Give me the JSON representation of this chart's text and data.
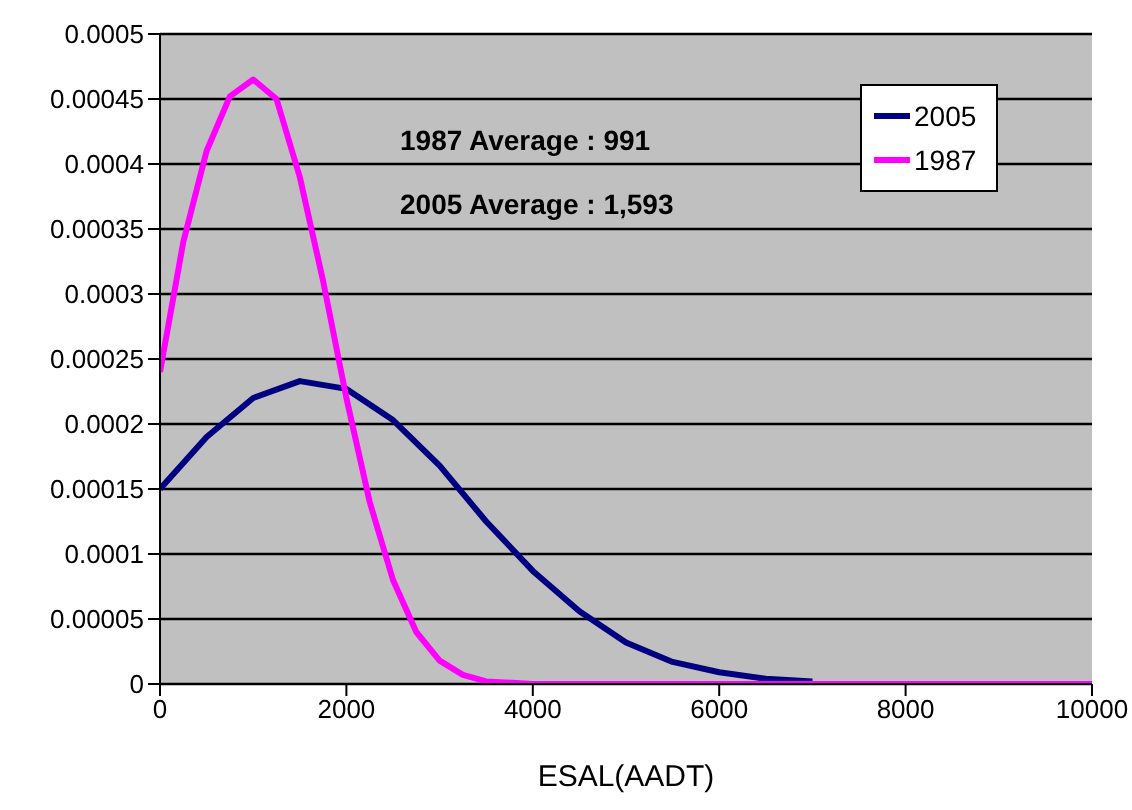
{
  "chart_data": {
    "type": "line",
    "xlabel": "ESAL(AADT)",
    "annotations": [
      "1987 Average : 991",
      "2005 Average : 1,593"
    ],
    "series": [
      {
        "name": "2005",
        "color": "#000080",
        "x": [
          0,
          500,
          1000,
          1500,
          2000,
          2500,
          3000,
          3500,
          4000,
          4500,
          5000,
          5500,
          6000,
          6500,
          7000
        ],
        "values": [
          0.00015,
          0.00019,
          0.00022,
          0.000233,
          0.000227,
          0.000203,
          0.000168,
          0.000125,
          8.7e-05,
          5.6e-05,
          3.2e-05,
          1.7e-05,
          9e-06,
          4e-06,
          2e-06
        ]
      },
      {
        "name": "1987",
        "color": "#ff00ff",
        "x": [
          0,
          250,
          500,
          750,
          1000,
          1250,
          1500,
          1750,
          2000,
          2250,
          2500,
          2750,
          3000,
          3250,
          3500,
          4000,
          5000,
          6000,
          7000,
          8000,
          9000,
          10000
        ],
        "values": [
          0.00024,
          0.00034,
          0.00041,
          0.000452,
          0.000465,
          0.00045,
          0.00039,
          0.00031,
          0.00022,
          0.00014,
          8e-05,
          4e-05,
          1.8e-05,
          7e-06,
          2e-06,
          0,
          0,
          0,
          0,
          0,
          0,
          0
        ]
      }
    ],
    "xlim": [
      0,
      10000
    ],
    "xticks": [
      0,
      2000,
      4000,
      6000,
      8000,
      10000
    ],
    "ylim": [
      0,
      0.0005
    ],
    "yticks": [
      0,
      {
        "value": 5e-05,
        "label": "0.00005"
      },
      0.0001,
      0.00015,
      0.0002,
      0.00025,
      0.0003,
      0.00035,
      0.0004,
      0.00045,
      0.0005
    ],
    "grid": "y",
    "legend": "top right",
    "marker": "none",
    "line_style": "solid"
  }
}
